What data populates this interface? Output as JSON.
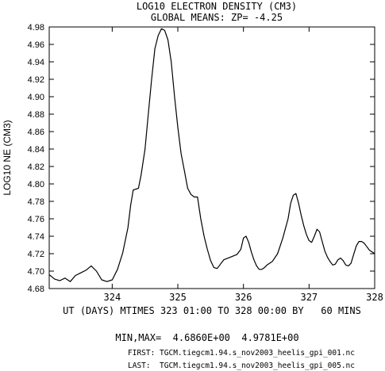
{
  "header": {
    "title": "LOG10 ELECTRON DENSITY (CM3)",
    "subtitle": "GLOBAL MEANS: ZP= -4.25"
  },
  "footer": {
    "xlabel": "UT (DAYS) MTIMES 323 01:00 TO 328 00:00 BY   60 MINS",
    "minmax": "MIN,MAX=  4.6860E+00  4.9781E+00",
    "first_file": "FIRST: TGCM.tiegcm1.94.s_nov2003_heelis_gpi_001.nc",
    "last_file": "LAST:  TGCM.tiegcm1.94.s_nov2003_heelis_gpi_005.nc"
  },
  "chart_data": {
    "type": "line",
    "title": "LOG10 ELECTRON DENSITY (CM3)",
    "subtitle": "GLOBAL MEANS: ZP= -4.25",
    "xlabel": "UT (DAYS) MTIMES 323 01:00 TO 328 00:00 BY   60 MINS",
    "ylabel": "LOG10 NE (CM3)",
    "xlim": [
      323.04,
      328.0
    ],
    "ylim": [
      4.68,
      4.98
    ],
    "x_ticks": [
      324,
      325,
      326,
      327,
      328
    ],
    "y_ticks": [
      4.68,
      4.7,
      4.72,
      4.74,
      4.76,
      4.78,
      4.8,
      4.82,
      4.84,
      4.86,
      4.88,
      4.9,
      4.92,
      4.94,
      4.96,
      4.98
    ],
    "y_tick_labels": [
      "4.68",
      "4.70",
      "4.72",
      "4.74",
      "4.76",
      "4.78",
      "4.80",
      "4.82",
      "4.84",
      "4.86",
      "4.88",
      "4.90",
      "4.92",
      "4.94",
      "4.96",
      "4.98"
    ],
    "x_tick_labels": [
      "324",
      "325",
      "326",
      "327",
      "328"
    ],
    "grid": false,
    "series": [
      {
        "color": "#000000",
        "x": [
          323.04,
          323.12,
          323.2,
          323.28,
          323.36,
          323.44,
          323.52,
          323.6,
          323.68,
          323.76,
          323.84,
          323.92,
          324.0,
          324.08,
          324.16,
          324.24,
          324.28,
          324.32,
          324.4,
          324.44,
          324.5,
          324.55,
          324.6,
          324.65,
          324.7,
          324.75,
          324.8,
          324.85,
          324.9,
          324.95,
          325.0,
          325.05,
          325.1,
          325.15,
          325.2,
          325.25,
          325.3,
          325.35,
          325.4,
          325.45,
          325.5,
          325.55,
          325.6,
          325.65,
          325.7,
          325.8,
          325.9,
          325.96,
          326.0,
          326.04,
          326.08,
          326.12,
          326.16,
          326.2,
          326.24,
          326.28,
          326.32,
          326.36,
          326.44,
          326.52,
          326.6,
          326.68,
          326.72,
          326.76,
          326.8,
          326.84,
          326.88,
          326.92,
          326.96,
          327.0,
          327.04,
          327.08,
          327.12,
          327.16,
          327.2,
          327.24,
          327.28,
          327.32,
          327.36,
          327.4,
          327.44,
          327.48,
          327.52,
          327.56,
          327.6,
          327.64,
          327.68,
          327.72,
          327.76,
          327.8,
          327.84,
          327.88,
          327.92,
          327.96,
          328.0
        ],
        "y": [
          4.696,
          4.691,
          4.689,
          4.692,
          4.688,
          4.695,
          4.698,
          4.701,
          4.706,
          4.7,
          4.69,
          4.688,
          4.69,
          4.702,
          4.721,
          4.75,
          4.775,
          4.793,
          4.795,
          4.81,
          4.84,
          4.88,
          4.92,
          4.955,
          4.97,
          4.978,
          4.976,
          4.965,
          4.94,
          4.9,
          4.865,
          4.835,
          4.815,
          4.795,
          4.788,
          4.785,
          4.785,
          4.76,
          4.74,
          4.725,
          4.712,
          4.704,
          4.703,
          4.708,
          4.713,
          4.716,
          4.719,
          4.725,
          4.738,
          4.74,
          4.733,
          4.722,
          4.713,
          4.706,
          4.702,
          4.702,
          4.704,
          4.707,
          4.711,
          4.72,
          4.738,
          4.76,
          4.778,
          4.787,
          4.789,
          4.778,
          4.764,
          4.752,
          4.742,
          4.735,
          4.733,
          4.74,
          4.748,
          4.745,
          4.734,
          4.723,
          4.716,
          4.711,
          4.707,
          4.708,
          4.713,
          4.715,
          4.712,
          4.707,
          4.706,
          4.709,
          4.719,
          4.729,
          4.734,
          4.734,
          4.732,
          4.728,
          4.724,
          4.722,
          4.72
        ]
      }
    ]
  }
}
